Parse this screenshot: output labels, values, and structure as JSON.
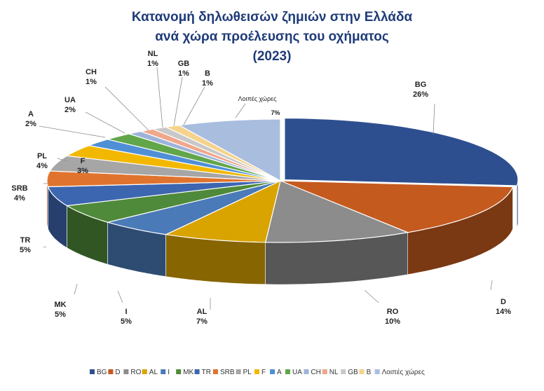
{
  "chart_data": {
    "type": "pie",
    "title": "Κατανομή δηλωθεισών ζημιών στην Ελλάδα\nανά χώρα προέλευσης του οχήματος\n(2023)",
    "title_lines": [
      "Κατανομή δηλωθεισών ζημιών στην Ελλάδα",
      "ανά χώρα προέλευσης του οχήματος",
      "(2023)"
    ],
    "three_d": true,
    "legend_position": "bottom",
    "title_color": "#1f3b78",
    "slices": [
      {
        "label": "BG",
        "value": 26,
        "display": "26%",
        "color": "#2e4f8f"
      },
      {
        "label": "D",
        "value": 14,
        "display": "14%",
        "color": "#c55a1f"
      },
      {
        "label": "RO",
        "value": 10,
        "display": "10%",
        "color": "#8c8c8c"
      },
      {
        "label": "AL",
        "value": 7,
        "display": "7%",
        "color": "#d9a300"
      },
      {
        "label": "I",
        "value": 5,
        "display": "5%",
        "color": "#4a7ab8"
      },
      {
        "label": "MK",
        "value": 5,
        "display": "5%",
        "color": "#4f8a3a"
      },
      {
        "label": "TR",
        "value": 5,
        "display": "5%",
        "color": "#3d66b0"
      },
      {
        "label": "SRB",
        "value": 4,
        "display": "4%",
        "color": "#e0742e"
      },
      {
        "label": "PL",
        "value": 4,
        "display": "4%",
        "color": "#a6a6a6"
      },
      {
        "label": "F",
        "value": 3,
        "display": "3%",
        "color": "#f2b800"
      },
      {
        "label": "A",
        "value": 2,
        "display": "2%",
        "color": "#4f8fd6"
      },
      {
        "label": "UA",
        "value": 2,
        "display": "2%",
        "color": "#62a64a"
      },
      {
        "label": "CH",
        "value": 1,
        "display": "1%",
        "color": "#9db3d9"
      },
      {
        "label": "NL",
        "value": 1,
        "display": "1%",
        "color": "#f0a78a"
      },
      {
        "label": "GB",
        "value": 1,
        "display": "1%",
        "color": "#c8c8c8"
      },
      {
        "label": "B",
        "value": 1,
        "display": "1%",
        "color": "#f5d38a"
      },
      {
        "label": "Λοιπές χώρες",
        "value": 7,
        "display": "7%",
        "color": "#a9bddf"
      }
    ]
  }
}
